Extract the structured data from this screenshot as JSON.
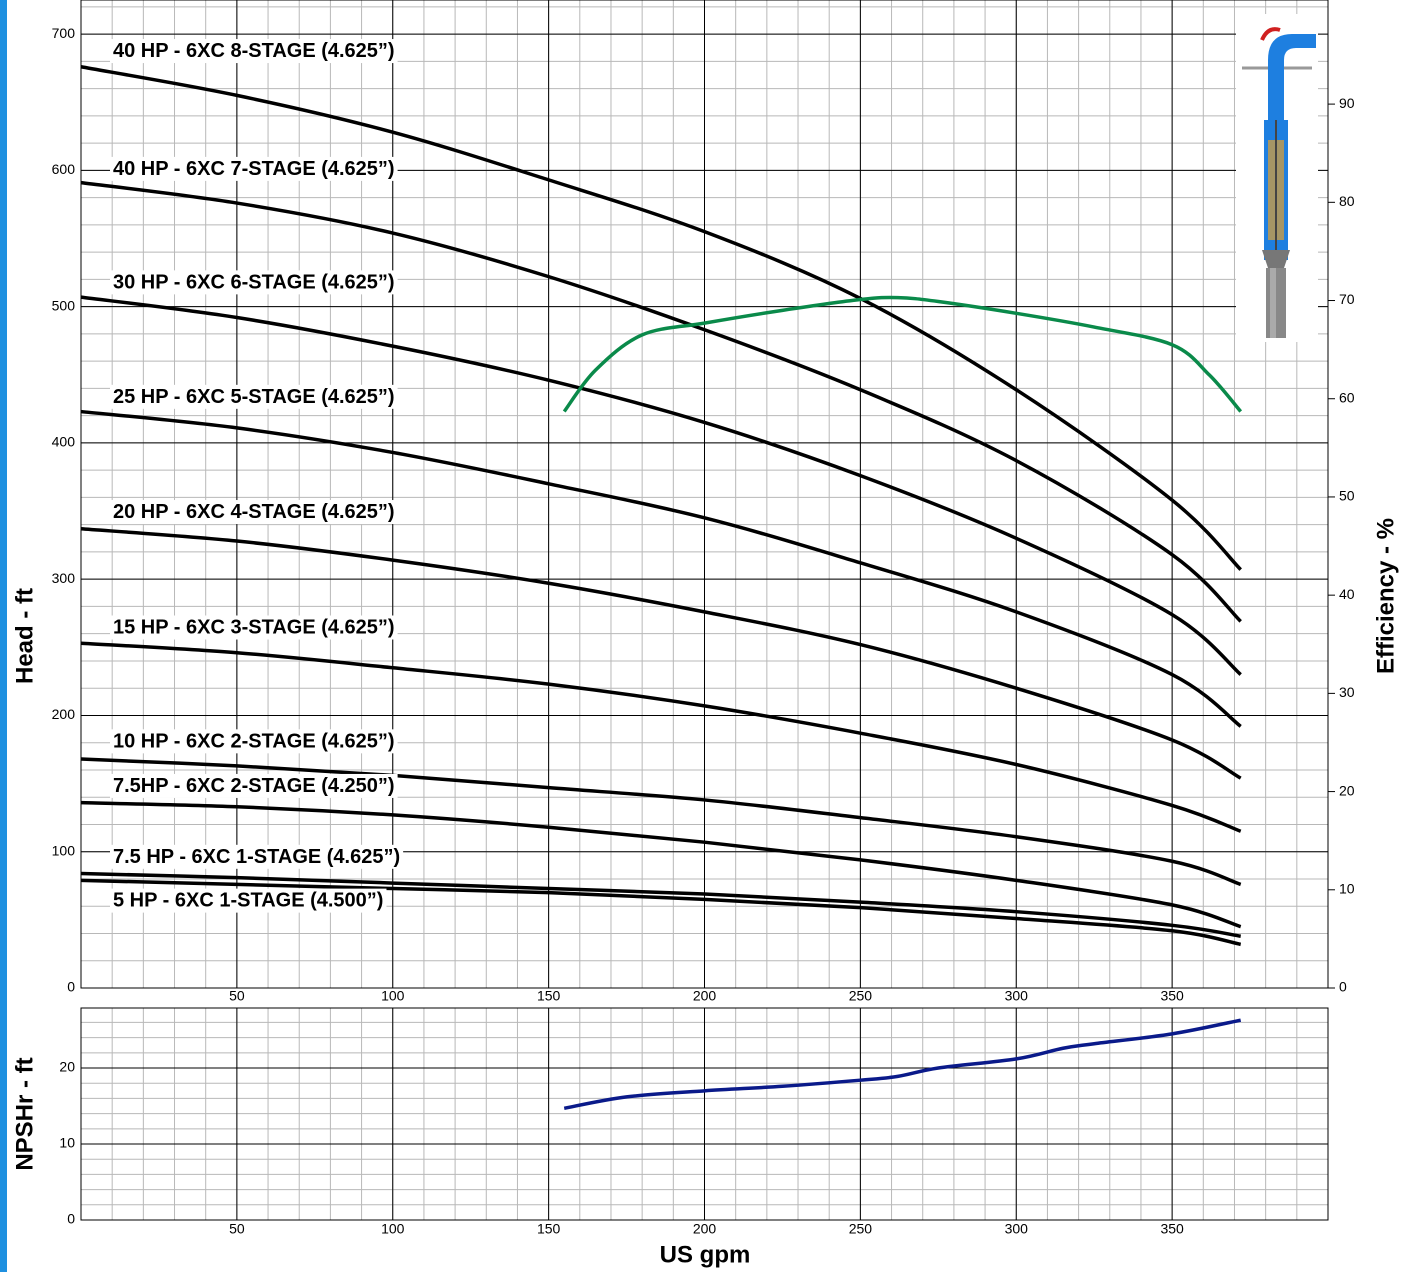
{
  "chart_data": [
    {
      "type": "line",
      "y_label": "Head - ft",
      "y2_label": "Efficiency - %",
      "xlim": [
        0,
        400
      ],
      "ylim": [
        0,
        725
      ],
      "y2lim": [
        0,
        100.6
      ],
      "xticks": [
        50,
        100,
        150,
        200,
        250,
        300,
        350
      ],
      "yticks": [
        0,
        100,
        200,
        300,
        400,
        500,
        600,
        700
      ],
      "y2ticks": [
        0,
        10,
        20,
        30,
        40,
        50,
        60,
        70,
        80,
        90
      ],
      "grid": true,
      "series": [
        {
          "name": "40 HP - 6XC 8-STAGE (4.625”)",
          "color": "#000000",
          "x": [
            0,
            50,
            100,
            150,
            200,
            250,
            300,
            350,
            372
          ],
          "values": [
            676,
            655,
            628,
            593,
            555,
            506,
            439,
            358,
            307
          ]
        },
        {
          "name": "40 HP - 6XC 7-STAGE (4.625”)",
          "color": "#000000",
          "x": [
            0,
            50,
            100,
            150,
            200,
            250,
            300,
            350,
            372
          ],
          "values": [
            591,
            576,
            554,
            522,
            483,
            439,
            387,
            318,
            269
          ]
        },
        {
          "name": "30 HP - 6XC 6-STAGE (4.625”)",
          "color": "#000000",
          "x": [
            0,
            50,
            100,
            150,
            200,
            250,
            300,
            350,
            372
          ],
          "values": [
            507,
            492,
            471,
            446,
            415,
            376,
            330,
            274,
            230
          ]
        },
        {
          "name": "25 HP - 6XC 5-STAGE (4.625”)",
          "color": "#000000",
          "x": [
            0,
            50,
            100,
            150,
            200,
            250,
            300,
            350,
            372
          ],
          "values": [
            423,
            411,
            393,
            370,
            345,
            312,
            276,
            230,
            192
          ]
        },
        {
          "name": "20 HP - 6XC 4-STAGE (4.625”)",
          "color": "#000000",
          "x": [
            0,
            50,
            100,
            150,
            200,
            250,
            300,
            350,
            372
          ],
          "values": [
            337,
            328,
            314,
            297,
            276,
            252,
            220,
            182,
            154
          ]
        },
        {
          "name": "15 HP - 6XC 3-STAGE (4.625”)",
          "color": "#000000",
          "x": [
            0,
            50,
            100,
            150,
            200,
            250,
            300,
            350,
            372
          ],
          "values": [
            253,
            246,
            235,
            223,
            207,
            187,
            164,
            134,
            115
          ]
        },
        {
          "name": "10 HP - 6XC 2-STAGE (4.625”)",
          "color": "#000000",
          "x": [
            0,
            50,
            100,
            150,
            200,
            250,
            300,
            350,
            372
          ],
          "values": [
            168,
            163,
            156,
            147,
            138,
            125,
            111,
            93,
            76
          ]
        },
        {
          "name": "7.5HP - 6XC 2-STAGE (4.250”)",
          "color": "#000000",
          "x": [
            0,
            50,
            100,
            150,
            200,
            250,
            300,
            350,
            372
          ],
          "values": [
            136,
            133,
            127,
            118,
            107,
            94,
            79,
            61,
            45
          ]
        },
        {
          "name": "7.5 HP - 6XC 1-STAGE (4.625”)",
          "color": "#000000",
          "x": [
            0,
            50,
            100,
            150,
            200,
            250,
            300,
            350,
            372
          ],
          "values": [
            84,
            81,
            77,
            73,
            69,
            63,
            56,
            46,
            38
          ]
        },
        {
          "name": "5 HP - 6XC 1-STAGE (4.500”)",
          "color": "#000000",
          "x": [
            0,
            50,
            100,
            150,
            200,
            250,
            300,
            350,
            372
          ],
          "values": [
            79,
            76,
            73,
            70,
            65,
            59,
            51,
            42,
            32
          ]
        },
        {
          "color": "#0a8a4a",
          "axis": "y2",
          "x": [
            155,
            165,
            180,
            200,
            225,
            250,
            262,
            275,
            300,
            325,
            350,
            362,
            372
          ],
          "values": [
            58.7,
            62.9,
            66.5,
            67.7,
            69.0,
            70.1,
            70.3,
            69.9,
            68.7,
            67.3,
            65.5,
            62.4,
            58.7
          ]
        }
      ]
    },
    {
      "type": "line",
      "y_label": "NPSHr - ft",
      "x_label": "US gpm",
      "xlim": [
        0,
        400
      ],
      "ylim": [
        0,
        27.9
      ],
      "xticks": [
        50,
        100,
        150,
        200,
        250,
        300,
        350
      ],
      "yticks": [
        0,
        10,
        20
      ],
      "grid": true,
      "series": [
        {
          "color": "#0a1a8a",
          "x": [
            155,
            175,
            200,
            225,
            250,
            262,
            275,
            300,
            315,
            325,
            350,
            372
          ],
          "values": [
            14.7,
            16.2,
            17.0,
            17.6,
            18.4,
            18.9,
            20.0,
            21.2,
            22.6,
            23.2,
            24.5,
            26.3
          ]
        }
      ]
    }
  ]
}
